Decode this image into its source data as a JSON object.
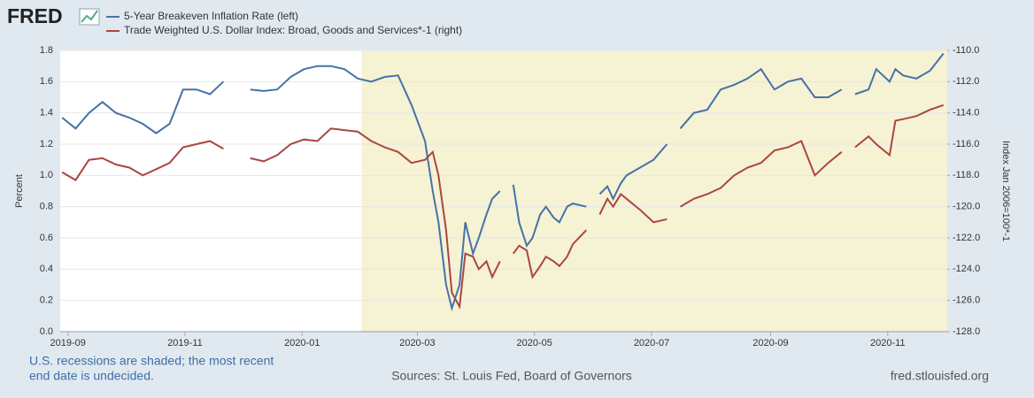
{
  "header": {
    "logo": "FRED"
  },
  "chart_data": {
    "type": "line",
    "x": [
      "2019-08-29",
      "2019-09-05",
      "2019-09-12",
      "2019-09-19",
      "2019-09-26",
      "2019-10-03",
      "2019-10-10",
      "2019-10-17",
      "2019-10-24",
      "2019-10-31",
      "2019-11-07",
      "2019-11-14",
      "2019-11-21",
      "2019-11-28",
      "2019-12-05",
      "2019-12-12",
      "2019-12-19",
      "2019-12-26",
      "2020-01-02",
      "2020-01-09",
      "2020-01-16",
      "2020-01-23",
      "2020-01-30",
      "2020-02-06",
      "2020-02-13",
      "2020-02-20",
      "2020-02-27",
      "2020-03-05",
      "2020-03-09",
      "2020-03-12",
      "2020-03-16",
      "2020-03-19",
      "2020-03-23",
      "2020-03-26",
      "2020-03-30",
      "2020-04-02",
      "2020-04-06",
      "2020-04-09",
      "2020-04-13",
      "2020-04-16",
      "2020-04-20",
      "2020-04-23",
      "2020-04-27",
      "2020-04-30",
      "2020-05-04",
      "2020-05-07",
      "2020-05-11",
      "2020-05-14",
      "2020-05-18",
      "2020-05-21",
      "2020-05-28",
      "2020-06-01",
      "2020-06-04",
      "2020-06-08",
      "2020-06-11",
      "2020-06-15",
      "2020-06-18",
      "2020-06-25",
      "2020-07-02",
      "2020-07-09",
      "2020-07-13",
      "2020-07-16",
      "2020-07-23",
      "2020-07-30",
      "2020-08-06",
      "2020-08-13",
      "2020-08-20",
      "2020-08-27",
      "2020-09-03",
      "2020-09-10",
      "2020-09-17",
      "2020-09-24",
      "2020-10-01",
      "2020-10-08",
      "2020-10-13",
      "2020-10-15",
      "2020-10-22",
      "2020-10-26",
      "2020-11-02",
      "2020-11-05",
      "2020-11-09",
      "2020-11-16",
      "2020-11-23",
      "2020-11-30"
    ],
    "series": [
      {
        "name": "5-Year Breakeven Inflation Rate (left)",
        "color": "#4572a7",
        "values": [
          1.37,
          1.3,
          1.4,
          1.47,
          1.4,
          1.37,
          1.33,
          1.27,
          1.33,
          1.55,
          1.55,
          1.52,
          1.6,
          null,
          1.55,
          1.54,
          1.55,
          1.63,
          1.68,
          1.7,
          1.7,
          1.68,
          1.62,
          1.6,
          1.63,
          1.64,
          1.45,
          1.22,
          0.9,
          0.7,
          0.3,
          0.15,
          0.3,
          0.7,
          0.5,
          0.6,
          0.75,
          0.85,
          0.9,
          null,
          0.94,
          0.7,
          0.55,
          0.6,
          0.75,
          0.8,
          0.73,
          0.7,
          0.8,
          0.82,
          0.8,
          null,
          0.88,
          0.93,
          0.85,
          0.95,
          1.0,
          1.05,
          1.1,
          1.2,
          null,
          1.3,
          1.4,
          1.42,
          1.55,
          1.58,
          1.62,
          1.68,
          1.55,
          1.6,
          1.62,
          1.5,
          1.5,
          1.55,
          null,
          1.52,
          1.55,
          1.68,
          1.6,
          1.68,
          1.64,
          1.62,
          1.67,
          1.78
        ]
      },
      {
        "name": "Trade Weighted U.S. Dollar Index: Broad, Goods and Services*-1 (right)",
        "color": "#aa4643",
        "axis": "y2",
        "values": [
          -117.8,
          -118.3,
          -117.0,
          -116.9,
          -117.3,
          -117.5,
          -118.0,
          -117.6,
          -117.2,
          -116.2,
          -116.0,
          -115.8,
          -116.3,
          null,
          -116.9,
          -117.1,
          -116.7,
          -116.0,
          -115.7,
          -115.8,
          -115.0,
          -115.1,
          -115.2,
          -115.8,
          -116.2,
          -116.5,
          -117.2,
          -117.0,
          -116.5,
          -118.0,
          -121.5,
          -125.5,
          -126.4,
          -123.0,
          -123.2,
          -124.0,
          -123.5,
          -124.5,
          -123.5,
          null,
          -123.0,
          -122.5,
          -122.8,
          -124.5,
          -123.8,
          -123.2,
          -123.5,
          -123.8,
          -123.2,
          -122.4,
          -121.5,
          null,
          -120.5,
          -119.5,
          -120.0,
          -119.2,
          -119.5,
          -120.2,
          -121.0,
          -120.8,
          null,
          -120.0,
          -119.5,
          -119.2,
          -118.8,
          -118.0,
          -117.5,
          -117.2,
          -116.4,
          -116.2,
          -115.8,
          -118.0,
          -117.2,
          -116.5,
          null,
          -116.2,
          -115.5,
          -116.0,
          -116.7,
          -114.5,
          -114.4,
          -114.2,
          -113.8,
          -113.5
        ]
      }
    ],
    "xlim": [
      "2019-08-28",
      "2020-12-02"
    ],
    "xticks": [
      "2019-09",
      "2019-11",
      "2020-01",
      "2020-03",
      "2020-05",
      "2020-07",
      "2020-09",
      "2020-11"
    ],
    "ylim": [
      0,
      1.8
    ],
    "yticks": [
      {
        "value": 0,
        "label": "0.0"
      },
      0.2,
      0.4,
      0.6,
      0.8,
      {
        "value": 1,
        "label": "1.0"
      },
      1.2,
      1.4,
      1.6,
      1.8
    ],
    "y2lim": [
      -128,
      -110
    ],
    "y2ticks": [
      {
        "value": -128,
        "label": "-128.0"
      },
      {
        "value": -126,
        "label": "-126.0"
      },
      {
        "value": -124,
        "label": "-124.0"
      },
      {
        "value": -122,
        "label": "-122.0"
      },
      {
        "value": -120,
        "label": "-120.0"
      },
      {
        "value": -118,
        "label": "-118.0"
      },
      {
        "value": -116,
        "label": "-116.0"
      },
      {
        "value": -114,
        "label": "-114.0"
      },
      {
        "value": -112,
        "label": "-112.0"
      },
      {
        "value": -110,
        "label": "-110.0"
      }
    ],
    "ylabel": "Percent",
    "y2label": "Index Jan 2006=100*-1",
    "grid": true,
    "shaded": [
      {
        "start": "2020-02-01"
      }
    ]
  },
  "footer": {
    "note": [
      "U.S. recessions are shaded; the most recent",
      "end date is undecided."
    ],
    "source": "Sources: St. Louis Fed, Board of Governors",
    "url": "fred.stlouisfed.org"
  }
}
